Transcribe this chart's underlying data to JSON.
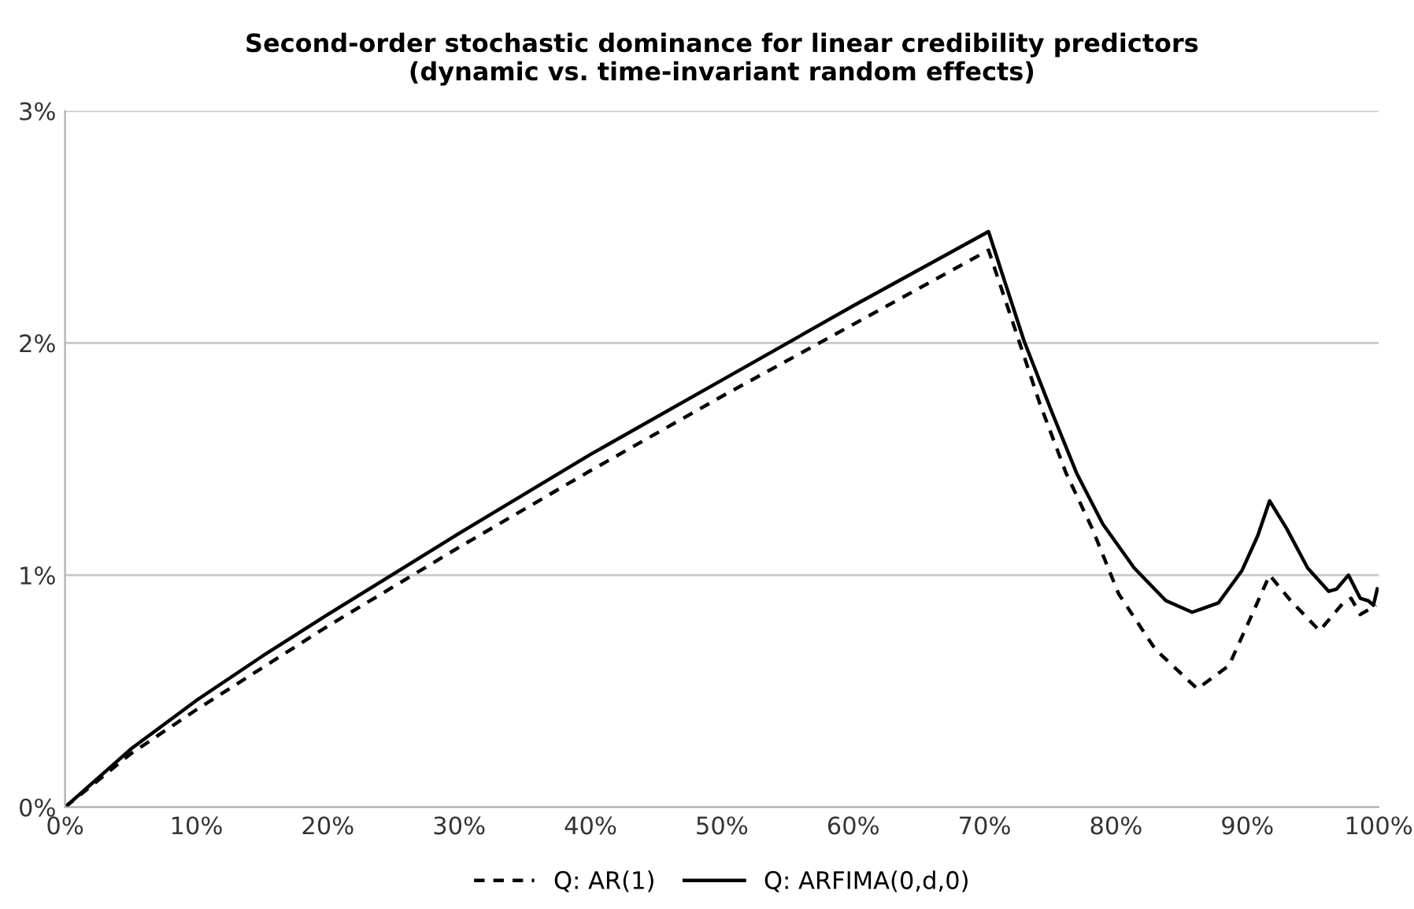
{
  "chart_data": {
    "type": "line",
    "title": "Second-order stochastic dominance for linear credibility predictors\n(dynamic vs. time-invariant random effects)",
    "xlim": [
      0,
      100
    ],
    "ylim": [
      0,
      3
    ],
    "xticks": [
      {
        "value": 0,
        "label": "0%"
      },
      {
        "value": 10,
        "label": "10%"
      },
      {
        "value": 20,
        "label": "20%"
      },
      {
        "value": 30,
        "label": "30%"
      },
      {
        "value": 40,
        "label": "40%"
      },
      {
        "value": 50,
        "label": "50%"
      },
      {
        "value": 60,
        "label": "60%"
      },
      {
        "value": 70,
        "label": "70%"
      },
      {
        "value": 80,
        "label": "80%"
      },
      {
        "value": 90,
        "label": "90%"
      },
      {
        "value": 100,
        "label": "100%"
      }
    ],
    "yticks": [
      {
        "value": 0,
        "label": "0%"
      },
      {
        "value": 1,
        "label": "1%"
      },
      {
        "value": 2,
        "label": "2%"
      },
      {
        "value": 3,
        "label": "3%"
      }
    ],
    "grid": "y",
    "legend": "bottom",
    "marker": "none",
    "series": [
      {
        "name": "Q: AR(1)",
        "color": "#000000",
        "line_style": "dashed",
        "x": [
          0,
          5,
          10,
          15,
          20,
          30,
          40,
          50,
          60,
          70.3,
          72.2,
          74.2,
          76.2,
          78.2,
          80.2,
          83.0,
          86.2,
          88.6,
          90.2,
          91.7,
          93.3,
          95.5,
          97.3,
          97.9,
          98.6,
          99.8
        ],
        "values": [
          0,
          0.23,
          0.42,
          0.6,
          0.78,
          1.12,
          1.45,
          1.77,
          2.08,
          2.4,
          2.08,
          1.74,
          1.44,
          1.2,
          0.92,
          0.68,
          0.51,
          0.61,
          0.81,
          1.0,
          0.89,
          0.76,
          0.88,
          0.9,
          0.83,
          0.87
        ]
      },
      {
        "name": "Q: ARFIMA(0,d,0)",
        "color": "#000000",
        "line_style": "solid",
        "x": [
          0,
          5,
          10,
          15,
          20,
          30,
          40,
          50,
          60,
          70.3,
          73.0,
          75.0,
          77.0,
          79.0,
          81.4,
          83.8,
          85.8,
          87.8,
          89.6,
          90.8,
          91.7,
          93.0,
          94.6,
          96.2,
          96.8,
          97.7,
          98.6,
          99.2,
          99.6,
          99.9
        ],
        "values": [
          0,
          0.25,
          0.46,
          0.65,
          0.83,
          1.18,
          1.52,
          1.84,
          2.16,
          2.48,
          2.01,
          1.72,
          1.44,
          1.22,
          1.03,
          0.89,
          0.84,
          0.88,
          1.02,
          1.17,
          1.32,
          1.2,
          1.03,
          0.93,
          0.94,
          1.0,
          0.9,
          0.89,
          0.87,
          0.94
        ]
      }
    ]
  }
}
